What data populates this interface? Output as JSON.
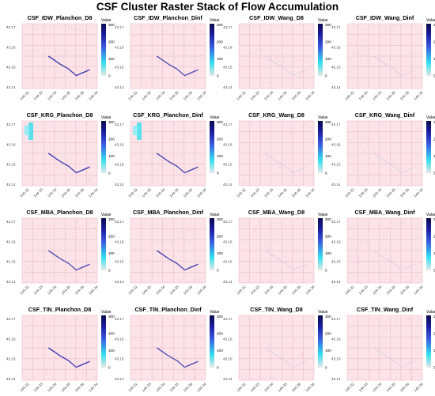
{
  "title": "CSF Cluster Raster Stack of Flow Accumulation",
  "colors": {
    "background_cell": "#fbe3e8",
    "grid_line": "#e9b5c0",
    "stream": "#2a2aa8",
    "low": "#f5c9d2",
    "mid": "#33e0ef",
    "high": "#0b0b4f"
  },
  "chart_data": {
    "type": "heatmap",
    "layout": "4x4 panel grid",
    "x_ticks": [
      "144.32",
      "144.33",
      "144.34",
      "144.35",
      "144.36",
      "144.34"
    ],
    "y_ticks": [
      "43.17",
      "43.16",
      "43.15",
      "43.14"
    ],
    "legend": {
      "title": "Value",
      "ticks": [
        "300",
        "200",
        "100",
        "0"
      ],
      "range": [
        0,
        300
      ]
    },
    "panels": [
      {
        "name": "CSF_IDW_Planchon_D8",
        "method": "Planchon",
        "stream_intensity": 0.9
      },
      {
        "name": "CSF_IDW_Planchon_Dinf",
        "method": "Planchon",
        "stream_intensity": 0.8
      },
      {
        "name": "CSF_IDW_Wang_D8",
        "method": "Wang",
        "stream_intensity": 0.15
      },
      {
        "name": "CSF_IDW_Wang_Dinf",
        "method": "Wang",
        "stream_intensity": 0.1
      },
      {
        "name": "CSF_KRG_Planchon_D8",
        "method": "Planchon",
        "stream_intensity": 0.9,
        "cyan_strip": true
      },
      {
        "name": "CSF_KRG_Planchon_Dinf",
        "method": "Planchon",
        "stream_intensity": 0.85,
        "cyan_strip": true
      },
      {
        "name": "CSF_KRG_Wang_D8",
        "method": "Wang",
        "stream_intensity": 0.15
      },
      {
        "name": "CSF_KRG_Wang_Dinf",
        "method": "Wang",
        "stream_intensity": 0.1
      },
      {
        "name": "CSF_MBA_Planchon_D8",
        "method": "Planchon",
        "stream_intensity": 0.8
      },
      {
        "name": "CSF_MBA_Planchon_Dinf",
        "method": "Planchon",
        "stream_intensity": 0.85
      },
      {
        "name": "CSF_MBA_Wang_D8",
        "method": "Wang",
        "stream_intensity": 0.2
      },
      {
        "name": "CSF_MBA_Wang_Dinf",
        "method": "Wang",
        "stream_intensity": 0.2
      },
      {
        "name": "CSF_TIN_Planchon_D8",
        "method": "Planchon",
        "stream_intensity": 0.9
      },
      {
        "name": "CSF_TIN_Planchon_Dinf",
        "method": "Planchon",
        "stream_intensity": 0.8
      },
      {
        "name": "CSF_TIN_Wang_D8",
        "method": "Wang",
        "stream_intensity": 0.1
      },
      {
        "name": "CSF_TIN_Wang_Dinf",
        "method": "Wang",
        "stream_intensity": 0.1
      }
    ]
  }
}
